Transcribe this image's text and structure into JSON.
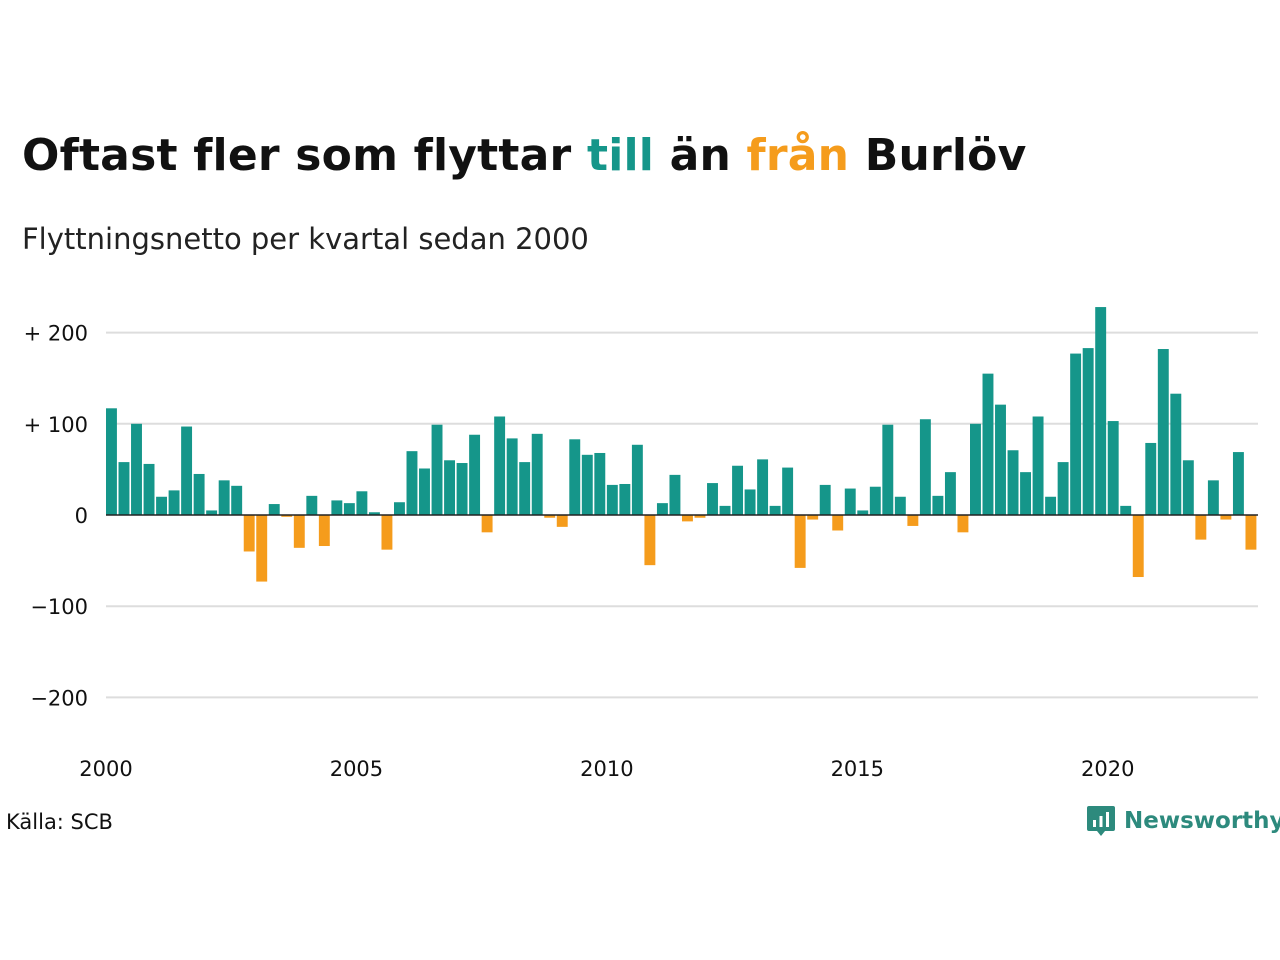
{
  "title": {
    "part1": "Oftast fler som flyttar ",
    "highlight_in": "till",
    "part2": " än ",
    "highlight_out": "från",
    "part3": " Burlöv"
  },
  "subtitle": "Flyttningsnetto per kvartal sedan 2000",
  "source": "Källa: SCB",
  "brand": "Newsworthy",
  "colors": {
    "positive": "#15968a",
    "negative": "#f59c1c",
    "grid": "#dddddd",
    "text": "#111111",
    "brand": "#2d8a7d"
  },
  "chart_data": {
    "type": "bar",
    "title": "Oftast fler som flyttar till än från Burlöv",
    "subtitle": "Flyttningsnetto per kvartal sedan 2000",
    "ylim": [
      -240,
      245
    ],
    "xlim": [
      2000.0,
      2023.0
    ],
    "yticks": [
      200,
      100,
      0,
      -100,
      -200
    ],
    "ytick_labels": [
      "+ 200",
      "+ 100",
      "0",
      "−100",
      "−200"
    ],
    "xticks": [
      2000,
      2005,
      2010,
      2015,
      2020
    ],
    "xtick_labels": [
      "2000",
      "2005",
      "2010",
      "2015",
      "2020"
    ],
    "grid": true,
    "start_year": 2000,
    "values": [
      117,
      58,
      100,
      56,
      20,
      27,
      97,
      45,
      5,
      38,
      32,
      -40,
      -73,
      12,
      -2,
      -36,
      21,
      -34,
      16,
      13,
      26,
      3,
      -38,
      14,
      70,
      51,
      99,
      60,
      57,
      88,
      -19,
      108,
      84,
      58,
      89,
      -3,
      -13,
      83,
      66,
      68,
      33,
      34,
      77,
      -55,
      13,
      44,
      -7,
      -3,
      35,
      10,
      54,
      28,
      61,
      10,
      52,
      -58,
      -5,
      33,
      -17,
      29,
      5,
      31,
      99,
      20,
      -12,
      105,
      21,
      47,
      -19,
      100,
      155,
      121,
      71,
      47,
      108,
      20,
      58,
      177,
      183,
      228,
      103,
      10,
      -68,
      79,
      182,
      133,
      60,
      -27,
      38,
      -5,
      69,
      -38
    ]
  }
}
